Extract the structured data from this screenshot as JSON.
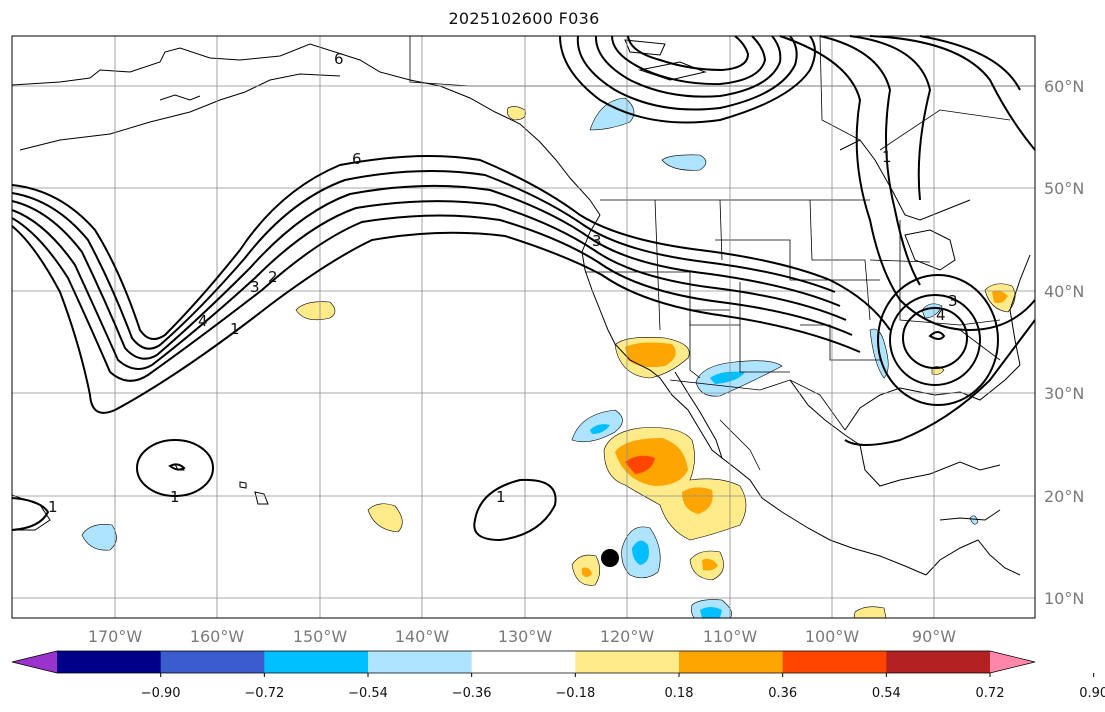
{
  "title": "2025102600 F036",
  "map": {
    "lat_labels": [
      "60°N",
      "50°N",
      "40°N",
      "30°N",
      "20°N",
      "10°N"
    ],
    "lon_labels": [
      "170°W",
      "160°W",
      "150°W",
      "140°W",
      "130°W",
      "120°W",
      "110°W",
      "100°W",
      "90°W"
    ],
    "contour_labels": [
      "6",
      "6",
      "4",
      "3",
      "2",
      "1",
      "1",
      "1",
      "1",
      "3",
      "3",
      "4",
      "1"
    ]
  },
  "colorbar": {
    "colors": [
      "#9933cc",
      "#000088",
      "#3a5ccc",
      "#00bfff",
      "#aee4ff",
      "#ffffff",
      "#ffeb8a",
      "#ffa500",
      "#ff4500",
      "#b22222",
      "#ff88aa"
    ],
    "tick_labels": [
      "−0.90",
      "−0.72",
      "−0.54",
      "−0.36",
      "−0.18",
      "0.18",
      "0.36",
      "0.54",
      "0.72",
      "0.90"
    ]
  },
  "colors": {
    "contour": "#000000",
    "grid": "#8c8c8c",
    "coast": "#000000",
    "marker": "#000000"
  }
}
